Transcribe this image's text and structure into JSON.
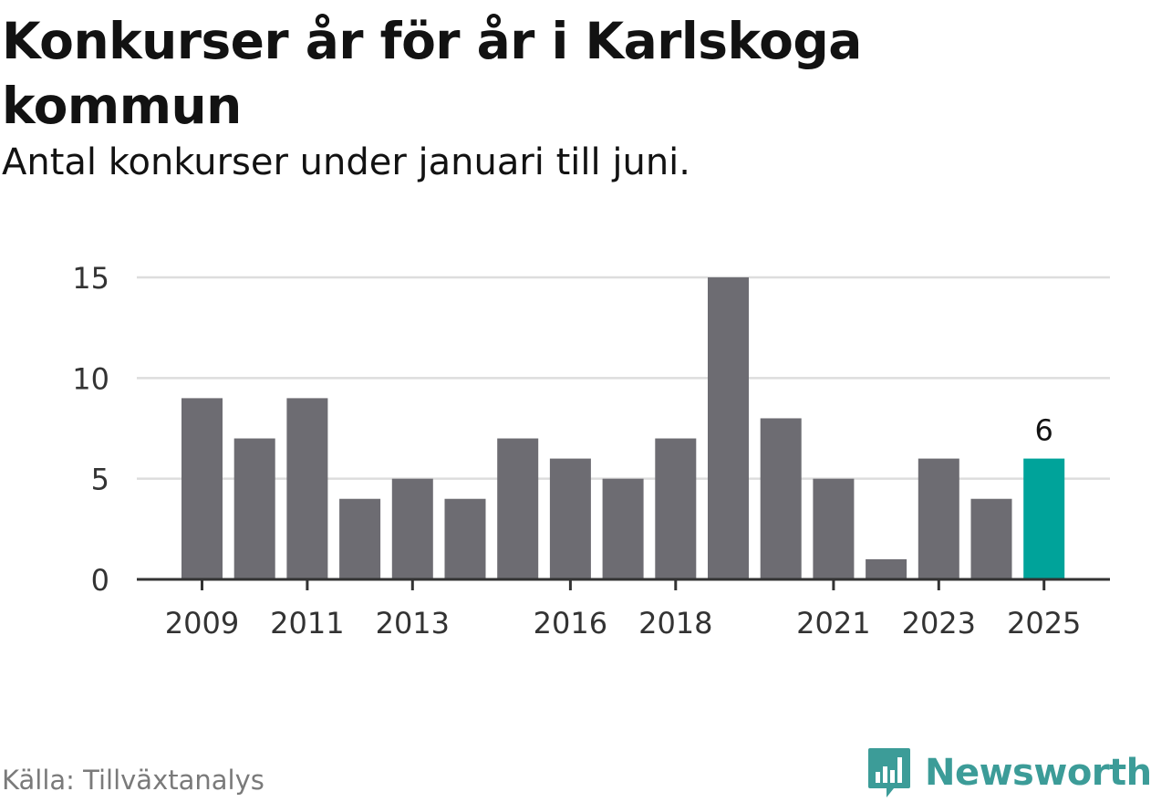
{
  "header": {
    "title": "Konkurser år för år i Karlskoga kommun",
    "subtitle": "Antal konkurser under januari till juni."
  },
  "footer": {
    "source": "Källa: Tillväxtanalys",
    "brand": "Newsworthy"
  },
  "colors": {
    "bar": "#6d6c72",
    "highlight": "#00a39a",
    "grid": "#dddddd",
    "axis": "#333333",
    "brand": "#3c9c98"
  },
  "icons": {
    "logo": "bar-chart-speech-bubble-icon"
  },
  "chart_data": {
    "type": "bar",
    "categories": [
      "2009",
      "2010",
      "2011",
      "2012",
      "2013",
      "2014",
      "2015",
      "2016",
      "2017",
      "2018",
      "2019",
      "2020",
      "2021",
      "2022",
      "2023",
      "2024",
      "2025"
    ],
    "values": [
      9,
      7,
      9,
      4,
      5,
      4,
      7,
      6,
      5,
      7,
      15,
      8,
      5,
      1,
      6,
      4,
      6
    ],
    "highlight_index": 16,
    "highlight_label": "6",
    "x_tick_labels": [
      "2009",
      "2011",
      "2013",
      "2016",
      "2018",
      "2021",
      "2023",
      "2025"
    ],
    "y_ticks": [
      0,
      5,
      10,
      15
    ],
    "ylim": [
      0,
      15
    ],
    "grid": true
  }
}
